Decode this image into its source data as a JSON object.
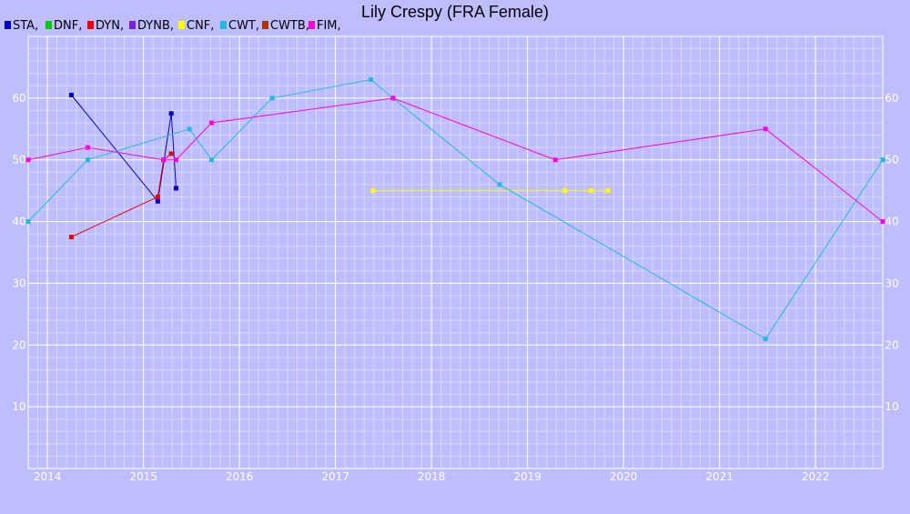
{
  "chart_data": {
    "type": "line",
    "title": "Lily Crespy (FRA Female)",
    "xlabel": "",
    "ylabel": "",
    "xlim": [
      2013.8,
      2022.7
    ],
    "ylim": [
      0,
      70
    ],
    "x_ticks": [
      "2014",
      "2015",
      "2016",
      "2017",
      "2018",
      "2019",
      "2020",
      "2021",
      "2022"
    ],
    "y_ticks": [
      "10",
      "20",
      "30",
      "40",
      "50",
      "60"
    ],
    "grid": true,
    "legend_position": "top-left",
    "legend": [
      {
        "name": "STA",
        "label": "STA,",
        "color": "#0000cc"
      },
      {
        "name": "DNF",
        "label": "DNF,",
        "color": "#00cc00"
      },
      {
        "name": "DYN",
        "label": "DYN,",
        "color": "#ee0000"
      },
      {
        "name": "DYNB",
        "label": "DYNB,",
        "color": "#7a1fe0"
      },
      {
        "name": "CNF",
        "label": "CNF,",
        "color": "#ffff00"
      },
      {
        "name": "CWT",
        "label": "CWT,",
        "color": "#22bbdd"
      },
      {
        "name": "CWTB",
        "label": "CWTB,",
        "color": "#aa3300"
      },
      {
        "name": "FIM",
        "label": "FIM,",
        "color": "#ff00dd"
      }
    ],
    "series": [
      {
        "name": "STA",
        "color": "#0000cc",
        "points": [
          [
            2014.25,
            60.5
          ],
          [
            2015.15,
            43.3
          ],
          [
            2015.29,
            57.5
          ],
          [
            2015.34,
            45.4
          ]
        ]
      },
      {
        "name": "DYN",
        "color": "#ee0000",
        "points": [
          [
            2014.25,
            37.5
          ],
          [
            2015.15,
            44.0
          ],
          [
            2015.21,
            50.0
          ],
          [
            2015.29,
            51.0
          ]
        ]
      },
      {
        "name": "CNF",
        "color": "#ffff00",
        "points": [
          [
            2017.39,
            45.0
          ],
          [
            2019.39,
            45.0
          ],
          [
            2019.66,
            45.0
          ],
          [
            2019.84,
            45.0
          ]
        ]
      },
      {
        "name": "CWT",
        "color": "#22bbdd",
        "points": [
          [
            2013.8,
            40.0
          ],
          [
            2014.42,
            50.0
          ],
          [
            2015.48,
            55.0
          ],
          [
            2015.71,
            50.0
          ],
          [
            2016.34,
            60.0
          ],
          [
            2017.37,
            63.0
          ],
          [
            2017.6,
            60.0
          ],
          [
            2018.71,
            46.0
          ],
          [
            2021.48,
            21.0
          ],
          [
            2022.7,
            50.0
          ]
        ]
      },
      {
        "name": "FIM",
        "color": "#ff00dd",
        "points": [
          [
            2013.8,
            50.0
          ],
          [
            2014.42,
            52.0
          ],
          [
            2015.21,
            50.0
          ],
          [
            2015.34,
            50.0
          ],
          [
            2015.71,
            56.0
          ],
          [
            2017.6,
            60.0
          ],
          [
            2019.29,
            50.0
          ],
          [
            2021.48,
            55.0
          ],
          [
            2022.7,
            40.0
          ]
        ]
      }
    ]
  }
}
